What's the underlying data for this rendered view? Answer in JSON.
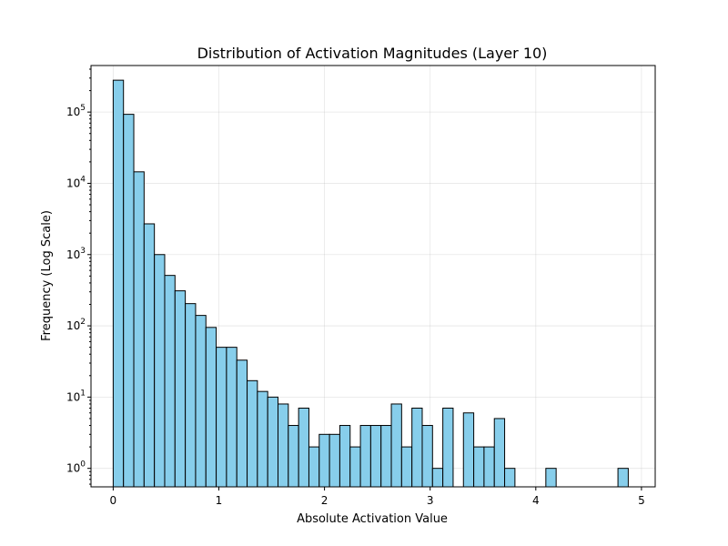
{
  "chart_data": {
    "type": "bar",
    "title": "Distribution of Activation Magnitudes (Layer 10)",
    "xlabel": "Absolute Activation Value",
    "ylabel": "Frequency (Log Scale)",
    "y_scale": "log",
    "xlim": [
      -0.21,
      5.13
    ],
    "ylim": [
      0.55,
      450000
    ],
    "grid": true,
    "bar_color": "#87CEEB",
    "edge_color": "#000000",
    "bin_width": 0.0975,
    "bin_start": 0.0,
    "values": [
      280000,
      93000,
      14500,
      2700,
      1000,
      510,
      310,
      205,
      140,
      95,
      50,
      50,
      33,
      17,
      12,
      10,
      8,
      4,
      7,
      2,
      3,
      3,
      4,
      2,
      4,
      4,
      4,
      8,
      2,
      7,
      4,
      1,
      7,
      0,
      6,
      2,
      2,
      5,
      1,
      0,
      0,
      0,
      1,
      0,
      0,
      0,
      0,
      0,
      0,
      1
    ],
    "x_ticks": [
      {
        "value": 0,
        "label": "0"
      },
      {
        "value": 1,
        "label": "1"
      },
      {
        "value": 2,
        "label": "2"
      },
      {
        "value": 3,
        "label": "3"
      },
      {
        "value": 4,
        "label": "4"
      },
      {
        "value": 5,
        "label": "5"
      }
    ],
    "y_ticks": [
      {
        "value": 1,
        "base": "10",
        "exp": "0"
      },
      {
        "value": 10,
        "base": "10",
        "exp": "1"
      },
      {
        "value": 100,
        "base": "10",
        "exp": "2"
      },
      {
        "value": 1000,
        "base": "10",
        "exp": "3"
      },
      {
        "value": 10000,
        "base": "10",
        "exp": "4"
      },
      {
        "value": 100000,
        "base": "10",
        "exp": "5"
      }
    ]
  }
}
